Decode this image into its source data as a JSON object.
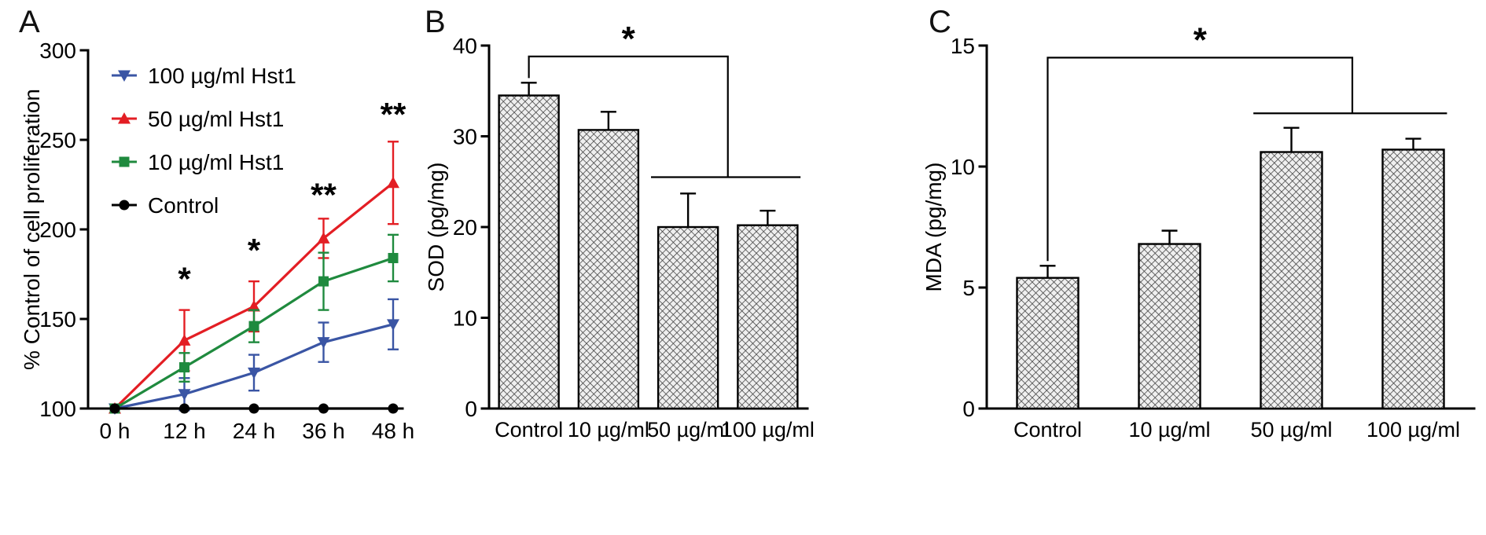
{
  "figure": {
    "panels": [
      {
        "label": "A"
      },
      {
        "label": "B"
      },
      {
        "label": "C"
      }
    ]
  },
  "chart_data": [
    {
      "type": "line",
      "panel": "A",
      "title": "",
      "xlabel": "",
      "ylabel": "% Control of cell proliferation",
      "x_categories": [
        "0 h",
        "12 h",
        "24 h",
        "36 h",
        "48 h"
      ],
      "ylim": [
        100,
        300
      ],
      "yticks": [
        100,
        150,
        200,
        250,
        300
      ],
      "grid": false,
      "legend_position": "upper-left-inside",
      "series": [
        {
          "name": "100 µg/ml Hst1",
          "color": "#3a55a4",
          "marker": "triangle-down",
          "values": [
            100,
            108,
            120,
            137,
            147
          ],
          "errors": [
            0,
            9,
            10,
            11,
            14
          ]
        },
        {
          "name": "50 µg/ml Hst1",
          "color": "#e31e24",
          "marker": "triangle-up",
          "values": [
            100,
            138,
            157,
            195,
            226
          ],
          "errors": [
            0,
            17,
            14,
            11,
            23
          ]
        },
        {
          "name": "10 µg/ml Hst1",
          "color": "#1f8a3e",
          "marker": "square",
          "values": [
            100,
            123,
            146,
            171,
            184
          ],
          "errors": [
            0,
            8,
            9,
            16,
            13
          ]
        },
        {
          "name": "Control",
          "color": "#000000",
          "marker": "circle",
          "values": [
            100,
            100,
            100,
            100,
            100
          ],
          "errors": [
            0,
            0,
            0,
            0,
            0
          ]
        }
      ],
      "annotations": [
        {
          "text": "*",
          "x_index": 1,
          "y": 166
        },
        {
          "text": "*",
          "x_index": 2,
          "y": 182
        },
        {
          "text": "**",
          "x_index": 3,
          "y": 213
        },
        {
          "text": "**",
          "x_index": 4,
          "y": 258
        }
      ]
    },
    {
      "type": "bar",
      "panel": "B",
      "title": "",
      "xlabel": "",
      "ylabel": "SOD (pg/mg)",
      "categories": [
        "Control",
        "10 µg/ml",
        "50 µg/ml",
        "100 µg/ml"
      ],
      "values": [
        34.5,
        30.7,
        20.0,
        20.2
      ],
      "errors": [
        1.4,
        2.0,
        3.7,
        1.6
      ],
      "ylim": [
        0,
        40
      ],
      "yticks": [
        0,
        10,
        20,
        30,
        40
      ],
      "grid": false,
      "bar_style": "crosshatch",
      "significance": {
        "text": "*",
        "from_bar": 0,
        "to_bars": [
          2,
          3
        ],
        "bracket_top": 38.8,
        "group_line": 25.5
      }
    },
    {
      "type": "bar",
      "panel": "C",
      "title": "",
      "xlabel": "",
      "ylabel": "MDA (pg/mg)",
      "categories": [
        "Control",
        "10 µg/ml",
        "50 µg/ml",
        "100 µg/ml"
      ],
      "values": [
        5.4,
        6.8,
        10.6,
        10.7
      ],
      "errors": [
        0.5,
        0.55,
        1.0,
        0.45
      ],
      "ylim": [
        0,
        15
      ],
      "yticks": [
        0,
        5,
        10,
        15
      ],
      "grid": false,
      "bar_style": "crosshatch",
      "significance": {
        "text": "*",
        "from_bar": 0,
        "to_bars": [
          2,
          3
        ],
        "bracket_top": 14.5,
        "group_line": 12.2
      }
    }
  ]
}
